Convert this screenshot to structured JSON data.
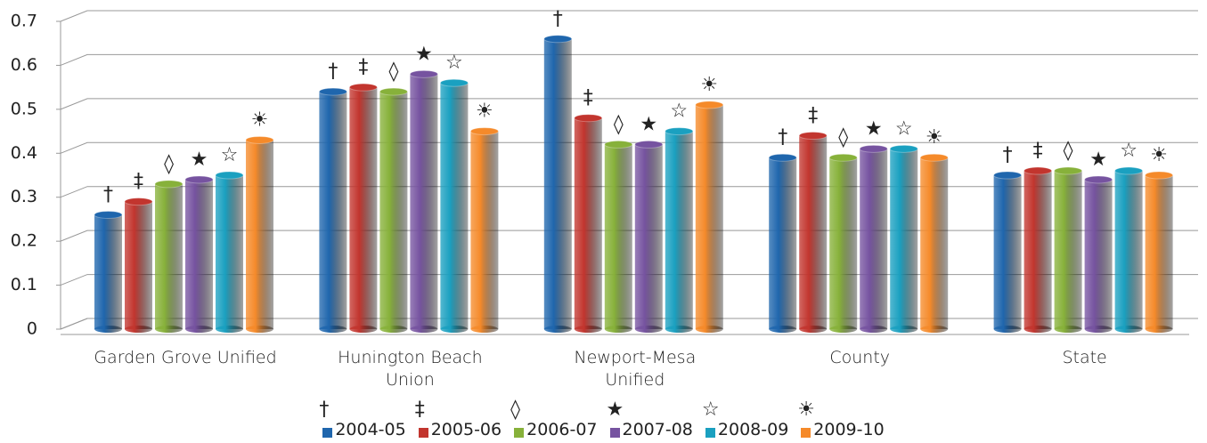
{
  "chart_data": {
    "type": "bar",
    "categories": [
      "Garden Grove Unified",
      "Hunington Beach\nUnion",
      "Newport-Mesa\nUnified",
      "County",
      "State"
    ],
    "series": [
      {
        "name": "2004-05",
        "symbol": "†",
        "color": "#1f66ad",
        "values": [
          0.26,
          0.54,
          0.66,
          0.39,
          0.35
        ]
      },
      {
        "name": "2005-06",
        "symbol": "‡",
        "color": "#c2352e",
        "values": [
          0.29,
          0.55,
          0.48,
          0.44,
          0.36
        ]
      },
      {
        "name": "2006-07",
        "symbol": "◊",
        "color": "#87b13a",
        "values": [
          0.33,
          0.54,
          0.42,
          0.39,
          0.36
        ]
      },
      {
        "name": "2007-08",
        "symbol": "★",
        "color": "#7653a0",
        "values": [
          0.34,
          0.58,
          0.42,
          0.41,
          0.34
        ]
      },
      {
        "name": "2008-09",
        "symbol": "☆",
        "color": "#1aa0c0",
        "values": [
          0.35,
          0.56,
          0.45,
          0.41,
          0.36
        ]
      },
      {
        "name": "2009-10",
        "symbol": "☀",
        "color": "#f58a2a",
        "values": [
          0.43,
          0.45,
          0.51,
          0.39,
          0.35
        ]
      }
    ],
    "ylim": [
      0,
      0.7
    ],
    "yticks": [
      0,
      0.1,
      0.2,
      0.3,
      0.4,
      0.5,
      0.6,
      0.7
    ],
    "grid": true,
    "legend": "bottom"
  }
}
